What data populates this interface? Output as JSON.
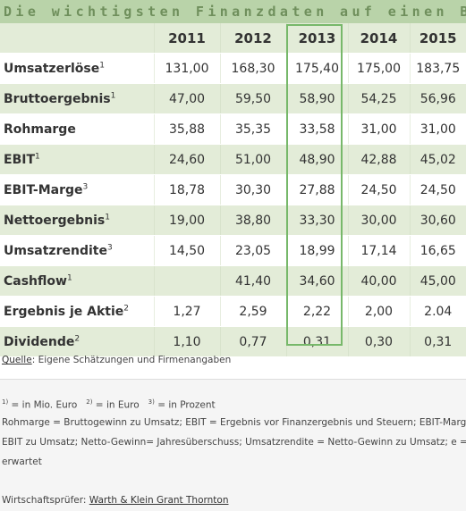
{
  "title": "Die wichtigsten Finanzdaten auf einen Blick",
  "years": [
    "2011",
    "2012",
    "2013",
    "2014",
    "2015"
  ],
  "rows": [
    {
      "label": "Umsatzerlöse",
      "sup": "1",
      "values": [
        "131,00",
        "168,30",
        "175,40",
        "175,00",
        "183,75"
      ]
    },
    {
      "label": "Bruttoergebnis",
      "sup": "1",
      "values": [
        "47,00",
        "59,50",
        "58,90",
        "54,25",
        "56,96"
      ]
    },
    {
      "label": "Rohmarge",
      "sup": "",
      "values": [
        "35,88",
        "35,35",
        "33,58",
        "31,00",
        "31,00"
      ]
    },
    {
      "label": "EBIT",
      "sup": "1",
      "values": [
        "24,60",
        "51,00",
        "48,90",
        "42,88",
        "45,02"
      ]
    },
    {
      "label": "EBIT-Marge",
      "sup": "3",
      "values": [
        "18,78",
        "30,30",
        "27,88",
        "24,50",
        "24,50"
      ]
    },
    {
      "label": "Nettoergebnis",
      "sup": "1",
      "values": [
        "19,00",
        "38,80",
        "33,30",
        "30,00",
        "30,60"
      ]
    },
    {
      "label": "Umsatzrendite",
      "sup": "3",
      "values": [
        "14,50",
        "23,05",
        "18,99",
        "17,14",
        "16,65"
      ]
    },
    {
      "label": "Cashflow",
      "sup": "1",
      "values": [
        "",
        "41,40",
        "34,60",
        "40,00",
        "45,00"
      ]
    },
    {
      "label": "Ergebnis je Aktie",
      "sup": "2",
      "values": [
        "1,27",
        "2,59",
        "2,22",
        "2,00",
        "2.04"
      ]
    },
    {
      "label": "Dividende",
      "sup": "2",
      "values": [
        "1,10",
        "0,77",
        "0,31",
        "0,30",
        "0,31"
      ]
    }
  ],
  "source": {
    "link_label": "Quelle",
    "text": ": Eigene Schätzungen und Firmenangaben"
  },
  "footnotes": {
    "fn1_mark": "1)",
    "fn1_text": " = in Mio. Euro",
    "fn2_mark": "2)",
    "fn2_text": " = in Euro",
    "fn3_mark": "3)",
    "fn3_text": " = in Prozent",
    "line1": "Rohmarge = Bruttogewinn zu Umsatz; EBIT = Ergebnis vor Finanzergebnis und Steuern; EBIT-Marge =",
    "line2": "EBIT zu Umsatz; Netto-Gewinn= Jahresüberschuss; Umsatzrendite = Netto-Gewinn zu Umsatz; e =",
    "line3": "erwartet"
  },
  "auditor": {
    "label": "Wirtschaftsprüfer: ",
    "link": "Warth & Klein Grant Thornton"
  },
  "colors": {
    "header_bg": "#b9d3a9",
    "row_green": "#e3ecd8",
    "highlight": "#77b86a"
  }
}
